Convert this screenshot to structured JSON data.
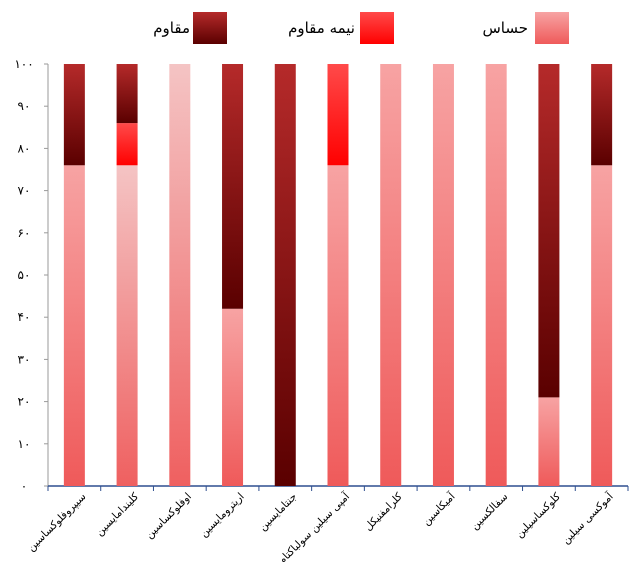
{
  "chart_data": {
    "type": "bar",
    "stacked": true,
    "orientation": "vertical",
    "categories": [
      "سیپروفلوکساسین",
      "کلیندامایسین",
      "اوفلوکساسین",
      "اریترومایسین",
      "جنتامایسین",
      "آمپی سیلین سولباکتام",
      "کلرامفنیکل",
      "آمیکاسین",
      "سفالکسین",
      "کلوکساسیلین",
      "آموکسی سیلین"
    ],
    "series": [
      {
        "name": "حساس",
        "color": "#f27a7a",
        "values": [
          76,
          76,
          100,
          42,
          0,
          76,
          100,
          100,
          100,
          21,
          76
        ]
      },
      {
        "name": "نیمه مقاوم",
        "color": "#ff1a1a",
        "values": [
          0,
          10,
          0,
          0,
          0,
          24,
          0,
          0,
          0,
          0,
          0
        ]
      },
      {
        "name": "مقاوم",
        "color": "#8b0d0d",
        "values": [
          24,
          14,
          0,
          58,
          100,
          0,
          0,
          0,
          0,
          79,
          24
        ]
      }
    ],
    "yticks": [
      "۰",
      "۱۰",
      "۲۰",
      "۳۰",
      "۴۰",
      "۵۰",
      "۶۰",
      "۷۰",
      "۸۰",
      "۹۰",
      "۱۰۰"
    ],
    "ylim": [
      0,
      100
    ],
    "grid": false,
    "legend_position": "top"
  }
}
